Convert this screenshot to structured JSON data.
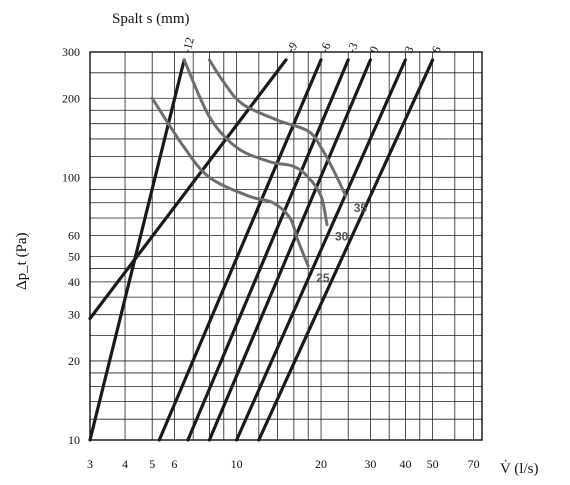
{
  "chart_data": {
    "type": "line",
    "title": "Spalt s (mm)",
    "xlabel": "V̇ (l/s)",
    "ylabel": "Δp_t (Pa)",
    "x_scale": "log",
    "y_scale": "log",
    "xlim": [
      3,
      75
    ],
    "ylim": [
      10,
      300
    ],
    "x_ticks": [
      "3",
      "4",
      "5",
      "6",
      "10",
      "20",
      "30",
      "40",
      "50",
      "70"
    ],
    "y_ticks": [
      "10",
      "20",
      "30",
      "40",
      "50",
      "60",
      "100",
      "200",
      "300"
    ],
    "grid": true,
    "series": [
      {
        "name": "-12",
        "color": "#1a1a1a",
        "x": [
          3.0,
          6.5
        ],
        "y": [
          10,
          280
        ]
      },
      {
        "name": "-9",
        "color": "#1a1a1a",
        "x": [
          3.0,
          15.0
        ],
        "y": [
          29,
          280
        ]
      },
      {
        "name": "-6",
        "color": "#1a1a1a",
        "x": [
          5.3,
          20.0
        ],
        "y": [
          10,
          280
        ]
      },
      {
        "name": "-3",
        "color": "#1a1a1a",
        "x": [
          6.7,
          25.0
        ],
        "y": [
          10,
          280
        ]
      },
      {
        "name": "0",
        "color": "#1a1a1a",
        "x": [
          8.0,
          30.0
        ],
        "y": [
          10,
          280
        ]
      },
      {
        "name": "3",
        "color": "#1a1a1a",
        "x": [
          10.0,
          40.0
        ],
        "y": [
          10,
          280
        ]
      },
      {
        "name": "6",
        "color": "#1a1a1a",
        "x": [
          12.0,
          50.0
        ],
        "y": [
          10,
          280
        ]
      },
      {
        "name": "25",
        "color": "#6e6e6e",
        "x": [
          5.0,
          6.5,
          8.0,
          11.0,
          13.5,
          15.5,
          16.5,
          18.0
        ],
        "y": [
          200,
          130,
          100,
          85,
          80,
          70,
          58,
          46
        ]
      },
      {
        "name": "30",
        "color": "#6e6e6e",
        "x": [
          6.5,
          8.0,
          10.0,
          13.0,
          16.0,
          18.0,
          20.0,
          21.0
        ],
        "y": [
          280,
          170,
          130,
          115,
          110,
          100,
          85,
          66
        ]
      },
      {
        "name": "35",
        "color": "#6e6e6e",
        "x": [
          8.0,
          9.0,
          10.5,
          14.0,
          18.0,
          20.0,
          22.0,
          24.5
        ],
        "y": [
          280,
          230,
          190,
          165,
          150,
          130,
          108,
          85
        ]
      }
    ]
  }
}
